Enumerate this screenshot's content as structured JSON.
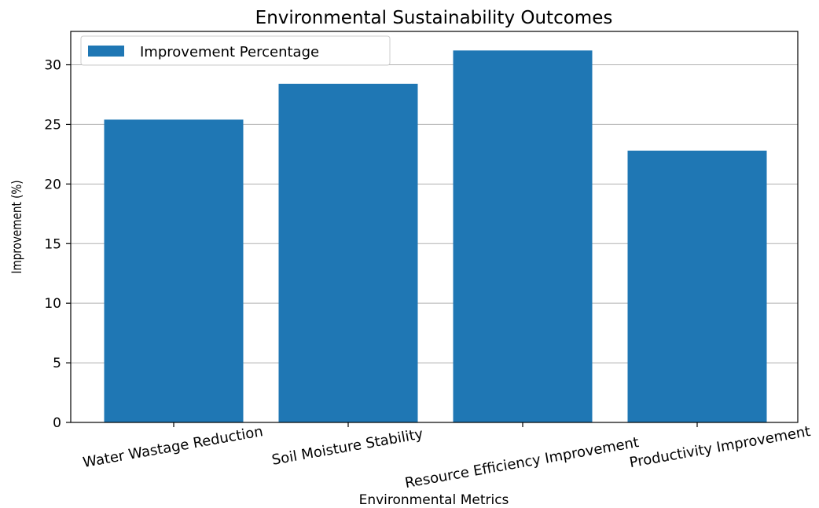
{
  "chart_data": {
    "type": "bar",
    "title": "Environmental Sustainability Outcomes",
    "xlabel": "Environmental Metrics",
    "ylabel": "Improvement (%)",
    "categories": [
      "Water Wastage Reduction",
      "Soil Moisture Stability",
      "Resource Efficiency Improvement",
      "Productivity Improvement"
    ],
    "series": [
      {
        "name": "Improvement Percentage",
        "values": [
          25.4,
          28.4,
          31.2,
          22.8
        ],
        "color": "#1f77b4"
      }
    ],
    "ylim": [
      0,
      32.8
    ],
    "yticks": [
      0,
      5,
      10,
      15,
      20,
      25,
      30
    ],
    "grid": "y",
    "legend_position": "top-left"
  }
}
